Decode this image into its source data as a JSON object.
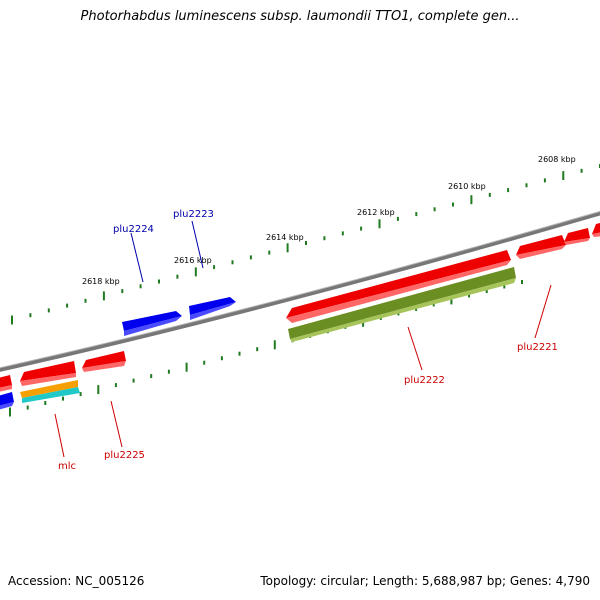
{
  "title": "Photorhabdus luminescens subsp. laumondii TTO1, complete gen...",
  "footer": {
    "accession": "Accession: NC_005126",
    "summary": "Topology: circular; Length: 5,688,987 bp; Genes: 4,790"
  },
  "colors": {
    "backbone": "#808080",
    "tick": "#207a20",
    "red_gene": "#ee0000",
    "blue_gene": "#0000ee",
    "olive_gene": "#6b8e23",
    "orange_gene": "#f5a000",
    "cyan_gene": "#20c8c8",
    "red_label": "#cc0000",
    "blue_label": "#0000aa"
  },
  "scale_labels": [
    "2608 kbp",
    "2610 kbp",
    "2612 kbp",
    "2614 kbp",
    "2616 kbp",
    "2618 kbp"
  ],
  "gene_labels": {
    "plu2224": "plu2224",
    "plu2223": "plu2223",
    "plu2222": "plu2222",
    "plu2221": "plu2221",
    "plu2225": "plu2225",
    "mlc": "mlc"
  }
}
